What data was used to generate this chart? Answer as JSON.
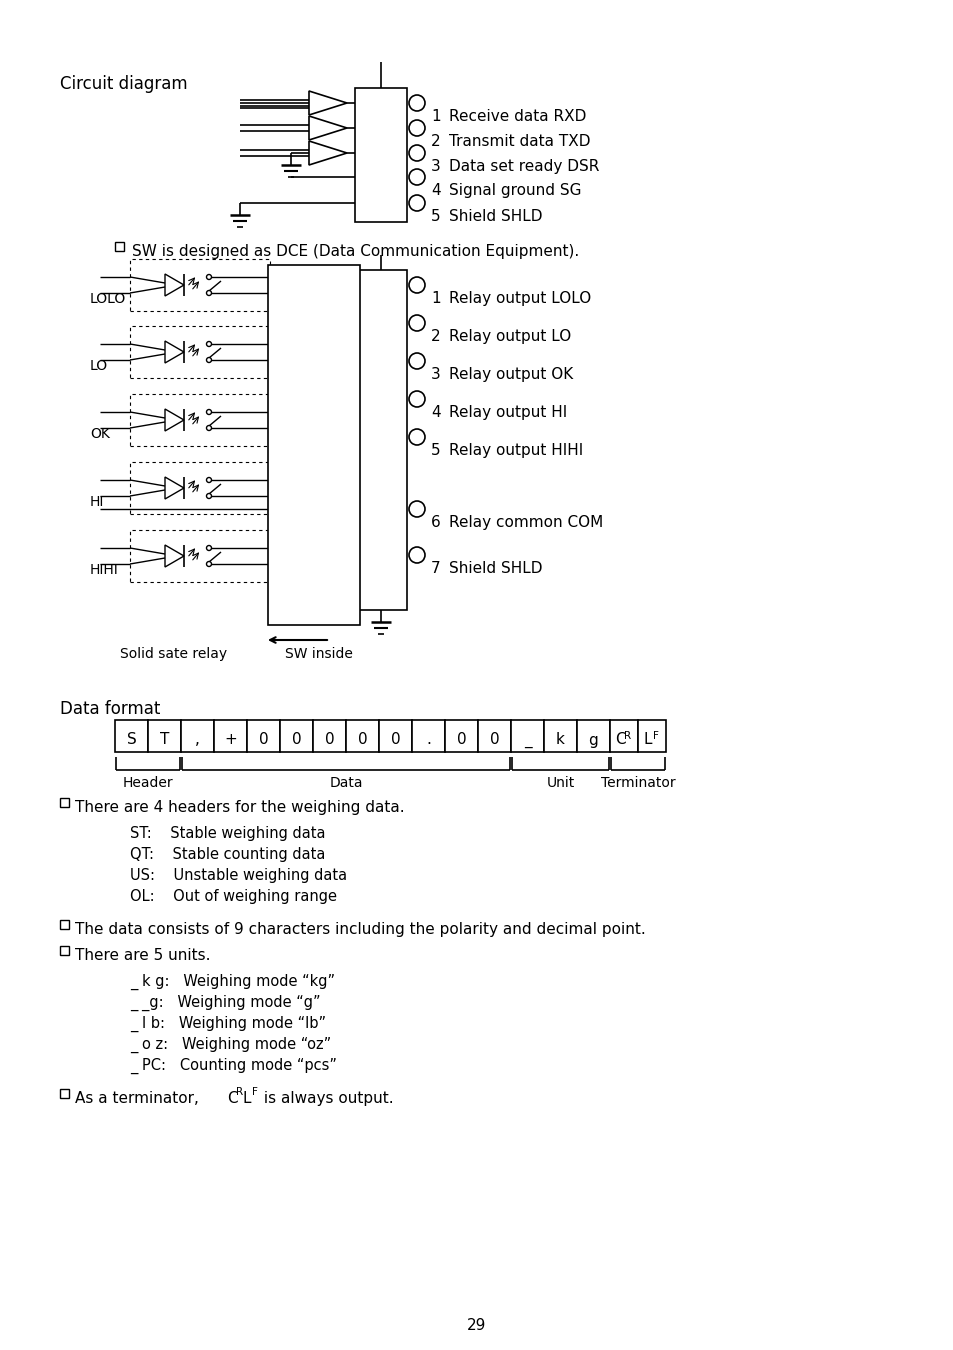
{
  "bg_color": "#ffffff",
  "circuit_diagram_label": "Circuit diagram",
  "data_format_label": "Data format",
  "rs232_pins": [
    {
      "num": "1",
      "label": "Receive data RXD"
    },
    {
      "num": "2",
      "label": "Transmit data TXD"
    },
    {
      "num": "3",
      "label": "Data set ready DSR"
    },
    {
      "num": "4",
      "label": "Signal ground SG"
    },
    {
      "num": "5",
      "label": "Shield SHLD"
    }
  ],
  "relay_pins": [
    {
      "num": "1",
      "label": "Relay output LOLO"
    },
    {
      "num": "2",
      "label": "Relay output LO"
    },
    {
      "num": "3",
      "label": "Relay output OK"
    },
    {
      "num": "4",
      "label": "Relay output HI"
    },
    {
      "num": "5",
      "label": "Relay output HIHI"
    },
    {
      "num": "6",
      "label": "Relay common COM"
    },
    {
      "num": "7",
      "label": "Shield SHLD"
    }
  ],
  "relay_labels": [
    "LOLO",
    "LO",
    "OK",
    "HI",
    "HIHI"
  ],
  "dce_note": "SW is designed as DCE (Data Communication Equipment).",
  "data_cells": [
    "S",
    "T",
    ",",
    "+",
    "0",
    "0",
    "0",
    "0",
    "0",
    ".",
    "0",
    "0",
    "_",
    "k",
    "g"
  ],
  "header_label": "Header",
  "data_label": "Data",
  "unit_label": "Unit",
  "terminator_label": "Terminator",
  "bullet1": "There are 4 headers for the weighing data.",
  "header_items": [
    "ST:    Stable weighing data",
    "QT:    Stable counting data",
    "US:    Unstable weighing data",
    "OL:    Out of weighing range"
  ],
  "bullet2": "The data consists of 9 characters including the polarity and decimal point.",
  "bullet3": "There are 5 units.",
  "unit_items": [
    "_ k g:   Weighing mode “kg”",
    "_ _g:   Weighing mode “g”",
    "_ l b:   Weighing mode “lb”",
    "_ o z:   Weighing mode “oz”",
    "_ PC:   Counting mode “pcs”"
  ],
  "solid_state_label": "Solid sate relay",
  "sw_inside_label": "SW inside",
  "page_number": "29"
}
